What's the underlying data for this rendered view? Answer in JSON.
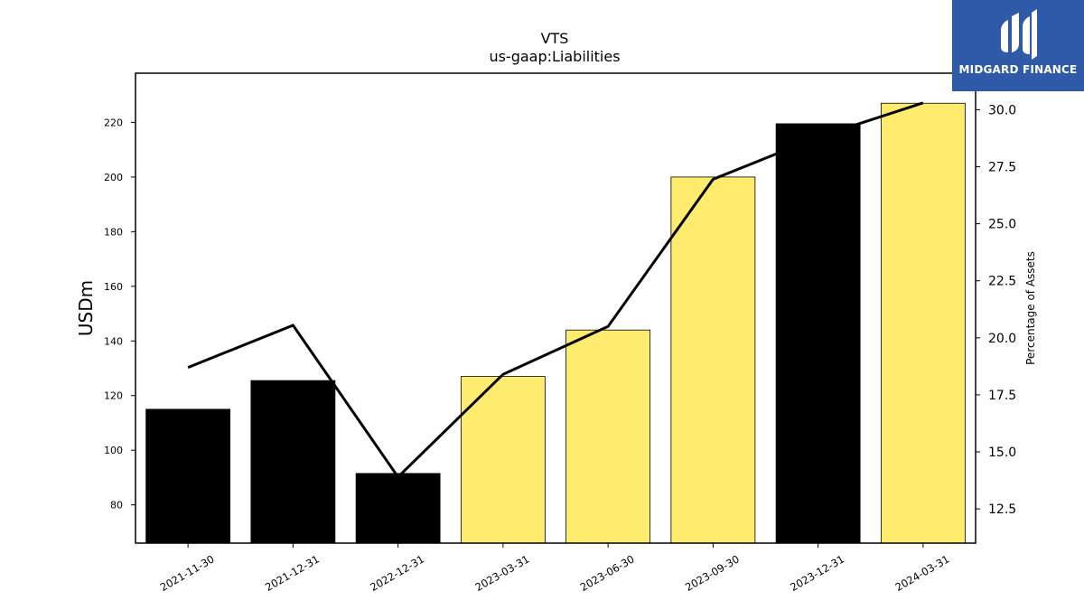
{
  "logo": {
    "text": "MIDGARD FINANCE"
  },
  "chart_data": {
    "type": "bar",
    "title": "VTS",
    "subtitle": "us-gaap:Liabilities",
    "ylabel": "USDm",
    "y2label": "Percentage of Assets",
    "categories": [
      "2021-11-30",
      "2021-12-31",
      "2022-12-31",
      "2023-03-31",
      "2023-06-30",
      "2023-09-30",
      "2023-12-31",
      "2024-03-31"
    ],
    "series": [
      {
        "values": [
          115,
          125.5,
          91.5,
          127,
          144,
          200,
          219.5,
          227
        ],
        "colors": [
          "#000000",
          "#000000",
          "#000000",
          "#ffeb6e",
          "#ffeb6e",
          "#ffeb6e",
          "#000000",
          "#ffeb6e"
        ]
      },
      {
        "type": "line",
        "axis": "right",
        "values": [
          18.7,
          20.55,
          13.9,
          18.4,
          20.5,
          26.95,
          28.8,
          30.3
        ],
        "color": "#000000"
      }
    ],
    "ylim": [
      66,
      238
    ],
    "y2lim": [
      11,
      31.6
    ],
    "yticks": [
      "80",
      "100",
      "120",
      "140",
      "160",
      "180",
      "200",
      "220"
    ],
    "y2ticks": [
      "12.5",
      "15.0",
      "17.5",
      "20.0",
      "22.5",
      "25.0",
      "27.5",
      "30.0"
    ]
  }
}
